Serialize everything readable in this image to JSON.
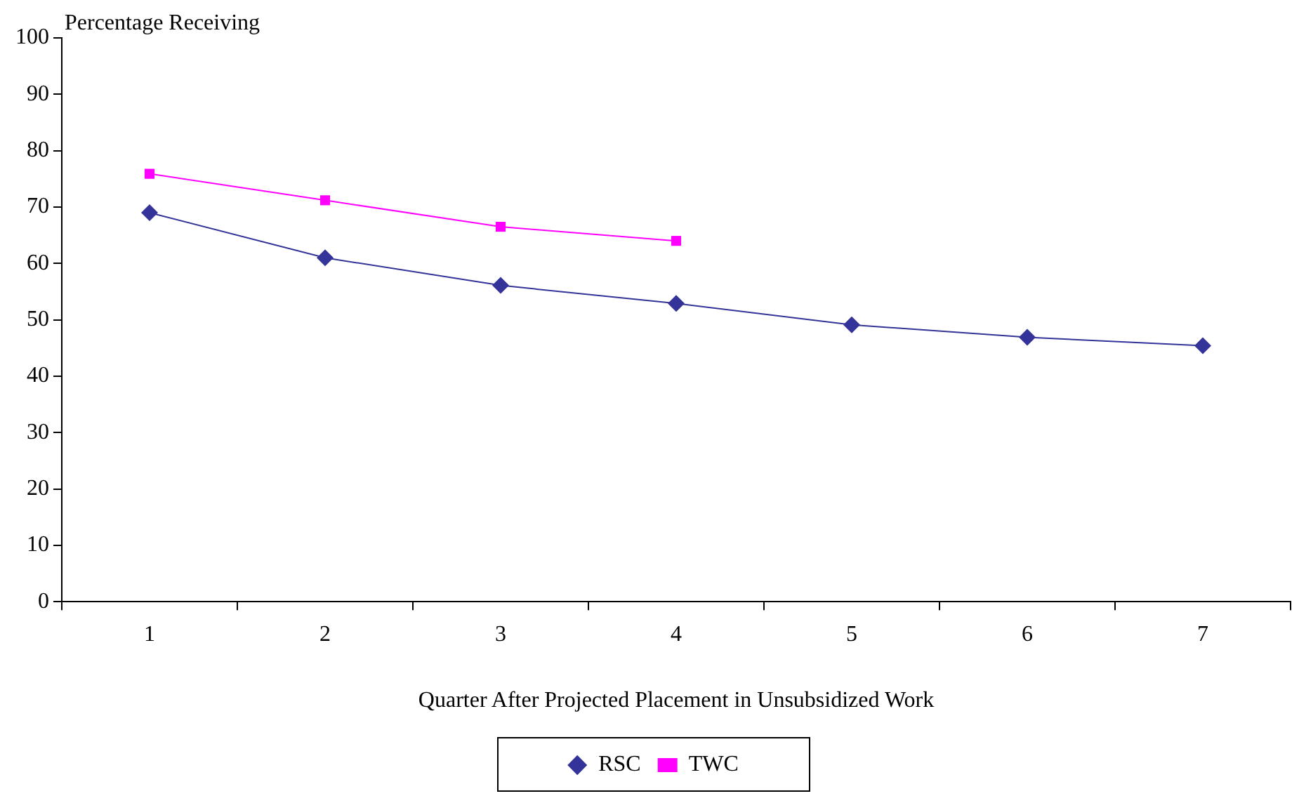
{
  "chart_data": {
    "type": "line",
    "ylabel": "Percentage Receiving",
    "xlabel": "Quarter After Projected Placement in Unsubsidized Work",
    "categories": [
      "1",
      "2",
      "3",
      "4",
      "5",
      "6",
      "7"
    ],
    "series": [
      {
        "name": "RSC",
        "color": "#333399",
        "marker": "diamond",
        "values": [
          69.0,
          61.0,
          56.1,
          52.9,
          49.1,
          46.9,
          45.4
        ]
      },
      {
        "name": "TWC",
        "color": "#ff00ff",
        "marker": "square",
        "values": [
          75.9,
          71.2,
          66.5,
          64.0,
          null,
          null,
          null
        ]
      }
    ],
    "ylim": [
      0,
      100
    ],
    "yticks": [
      0,
      10,
      20,
      30,
      40,
      50,
      60,
      70,
      80,
      90,
      100
    ],
    "grid": false,
    "legend": "bottom",
    "line_style": "solid"
  }
}
